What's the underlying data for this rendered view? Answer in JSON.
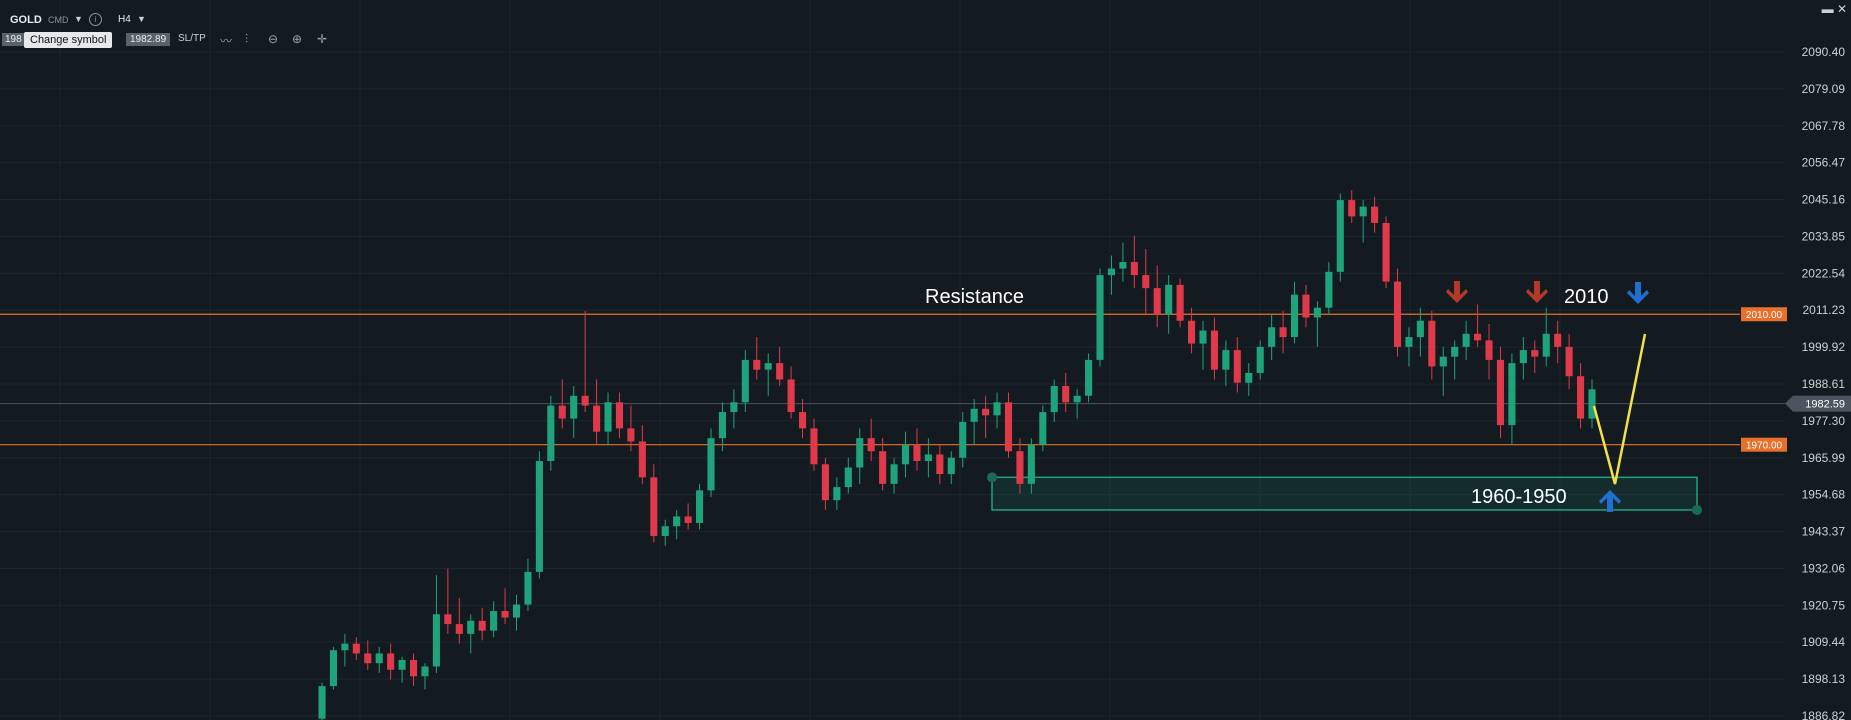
{
  "toolbar": {
    "symbol": "GOLD",
    "symbol_type": "CMD",
    "timeframe": "H4",
    "bid": "198",
    "tooltip": "Change symbol",
    "ask": "1982.89",
    "sltp": "SL/TP",
    "window_buttons": "▬ ✕"
  },
  "colors": {
    "background": "#131b21",
    "bull": "#1fa37a",
    "bear": "#e0394a",
    "level_line": "#e8702a",
    "zone": "#1fa37a",
    "path": "#f5e04a",
    "arrow_down_red": "#b33a2a",
    "arrow_blue": "#1f6fd1"
  },
  "chart_data": {
    "type": "candlestick",
    "symbol": "GOLD",
    "timeframe": "H4",
    "ylim": [
      1886.82,
      2097.0
    ],
    "y_ticks": [
      "2090.40",
      "2079.09",
      "2067.78",
      "2056.47",
      "2045.16",
      "2033.85",
      "2022.54",
      "2011.23",
      "1999.92",
      "1988.61",
      "1977.30",
      "1965.99",
      "1954.68",
      "1943.37",
      "1932.06",
      "1920.75",
      "1909.44",
      "1898.13",
      "1886.82"
    ],
    "current_price": "1982.59",
    "levels": [
      {
        "value": 2010.0,
        "label": "2010.00"
      },
      {
        "value": 1970.0,
        "label": "1970.00"
      }
    ],
    "zone": {
      "from": 1950,
      "to": 1960
    },
    "annotations": {
      "resistance": "Resistance",
      "level_2010": "2010",
      "zone_label": "1960-1950"
    },
    "candles": [
      [
        1886,
        1897,
        1885,
        1896
      ],
      [
        1896,
        1908,
        1895,
        1907
      ],
      [
        1907,
        1912,
        1902,
        1909
      ],
      [
        1909,
        1911,
        1904,
        1906
      ],
      [
        1906,
        1910,
        1901,
        1903
      ],
      [
        1903,
        1908,
        1900,
        1906
      ],
      [
        1906,
        1909,
        1898,
        1901
      ],
      [
        1901,
        1905,
        1897,
        1904
      ],
      [
        1904,
        1906,
        1896,
        1899
      ],
      [
        1899,
        1903,
        1895,
        1902
      ],
      [
        1902,
        1930,
        1900,
        1918
      ],
      [
        1918,
        1932,
        1912,
        1915
      ],
      [
        1915,
        1923,
        1909,
        1912
      ],
      [
        1912,
        1918,
        1906,
        1916
      ],
      [
        1916,
        1920,
        1910,
        1913
      ],
      [
        1913,
        1922,
        1911,
        1919
      ],
      [
        1919,
        1926,
        1915,
        1917
      ],
      [
        1917,
        1924,
        1913,
        1921
      ],
      [
        1921,
        1935,
        1919,
        1931
      ],
      [
        1931,
        1968,
        1929,
        1965
      ],
      [
        1965,
        1985,
        1962,
        1982
      ],
      [
        1982,
        1990,
        1975,
        1978
      ],
      [
        1978,
        1988,
        1972,
        1985
      ],
      [
        1985,
        2011,
        1980,
        1982
      ],
      [
        1982,
        1990,
        1970,
        1974
      ],
      [
        1974,
        1986,
        1970,
        1983
      ],
      [
        1983,
        1986,
        1972,
        1975
      ],
      [
        1975,
        1982,
        1968,
        1971
      ],
      [
        1971,
        1976,
        1958,
        1960
      ],
      [
        1960,
        1964,
        1940,
        1942
      ],
      [
        1942,
        1947,
        1939,
        1945
      ],
      [
        1945,
        1950,
        1941,
        1948
      ],
      [
        1948,
        1952,
        1944,
        1946
      ],
      [
        1946,
        1958,
        1944,
        1956
      ],
      [
        1956,
        1975,
        1954,
        1972
      ],
      [
        1972,
        1983,
        1968,
        1980
      ],
      [
        1980,
        1987,
        1975,
        1983
      ],
      [
        1983,
        1999,
        1980,
        1996
      ],
      [
        1996,
        2003,
        1990,
        1993
      ],
      [
        1993,
        1998,
        1985,
        1995
      ],
      [
        1995,
        2000,
        1988,
        1990
      ],
      [
        1990,
        1994,
        1978,
        1980
      ],
      [
        1980,
        1984,
        1972,
        1975
      ],
      [
        1975,
        1978,
        1962,
        1964
      ],
      [
        1964,
        1966,
        1950,
        1953
      ],
      [
        1953,
        1960,
        1950,
        1957
      ],
      [
        1957,
        1966,
        1955,
        1963
      ],
      [
        1963,
        1975,
        1958,
        1972
      ],
      [
        1972,
        1978,
        1965,
        1968
      ],
      [
        1968,
        1972,
        1956,
        1958
      ],
      [
        1958,
        1966,
        1955,
        1964
      ],
      [
        1964,
        1974,
        1960,
        1970
      ],
      [
        1970,
        1975,
        1962,
        1965
      ],
      [
        1965,
        1972,
        1960,
        1967
      ],
      [
        1967,
        1970,
        1958,
        1961
      ],
      [
        1961,
        1968,
        1958,
        1966
      ],
      [
        1966,
        1980,
        1963,
        1977
      ],
      [
        1977,
        1984,
        1970,
        1981
      ],
      [
        1981,
        1985,
        1972,
        1979
      ],
      [
        1979,
        1986,
        1975,
        1983
      ],
      [
        1983,
        1986,
        1966,
        1968
      ],
      [
        1968,
        1972,
        1955,
        1958
      ],
      [
        1958,
        1972,
        1955,
        1970
      ],
      [
        1970,
        1982,
        1968,
        1980
      ],
      [
        1980,
        1990,
        1977,
        1988
      ],
      [
        1988,
        1992,
        1980,
        1983
      ],
      [
        1983,
        1987,
        1978,
        1985
      ],
      [
        1985,
        1998,
        1983,
        1996
      ],
      [
        1996,
        2024,
        1994,
        2022
      ],
      [
        2022,
        2028,
        2016,
        2024
      ],
      [
        2024,
        2032,
        2020,
        2026
      ],
      [
        2026,
        2034,
        2018,
        2022
      ],
      [
        2022,
        2030,
        2010,
        2018
      ],
      [
        2018,
        2025,
        2006,
        2010
      ],
      [
        2010,
        2022,
        2004,
        2019
      ],
      [
        2019,
        2021,
        2006,
        2008
      ],
      [
        2008,
        2012,
        1998,
        2001
      ],
      [
        2001,
        2008,
        1993,
        2005
      ],
      [
        2005,
        2009,
        1990,
        1993
      ],
      [
        1993,
        2002,
        1988,
        1999
      ],
      [
        1999,
        2003,
        1986,
        1989
      ],
      [
        1989,
        1995,
        1985,
        1992
      ],
      [
        1992,
        2002,
        1990,
        2000
      ],
      [
        2000,
        2010,
        1996,
        2006
      ],
      [
        2006,
        2011,
        1998,
        2003
      ],
      [
        2003,
        2020,
        2001,
        2016
      ],
      [
        2016,
        2019,
        2006,
        2009
      ],
      [
        2009,
        2014,
        2000,
        2012
      ],
      [
        2012,
        2026,
        2010,
        2023
      ],
      [
        2023,
        2047,
        2020,
        2045
      ],
      [
        2045,
        2048,
        2038,
        2040
      ],
      [
        2040,
        2045,
        2032,
        2043
      ],
      [
        2043,
        2046,
        2035,
        2038
      ],
      [
        2038,
        2040,
        2018,
        2020
      ],
      [
        2020,
        2024,
        1997,
        2000
      ],
      [
        2000,
        2006,
        1994,
        2003
      ],
      [
        2003,
        2012,
        1997,
        2008
      ],
      [
        2008,
        2011,
        1990,
        1994
      ],
      [
        1994,
        2000,
        1985,
        1997
      ],
      [
        1997,
        2002,
        1990,
        2000
      ],
      [
        2000,
        2008,
        1996,
        2004
      ],
      [
        2004,
        2013,
        2000,
        2002
      ],
      [
        2002,
        2007,
        1990,
        1996
      ],
      [
        1996,
        2000,
        1972,
        1976
      ],
      [
        1976,
        1998,
        1970,
        1995
      ],
      [
        1995,
        2003,
        1990,
        1999
      ],
      [
        1999,
        2002,
        1992,
        1997
      ],
      [
        1997,
        2012,
        1994,
        2004
      ],
      [
        2004,
        2008,
        1995,
        2000
      ],
      [
        2000,
        2004,
        1987,
        1991
      ],
      [
        1991,
        1995,
        1975,
        1978
      ],
      [
        1978,
        1990,
        1975,
        1987
      ]
    ]
  }
}
